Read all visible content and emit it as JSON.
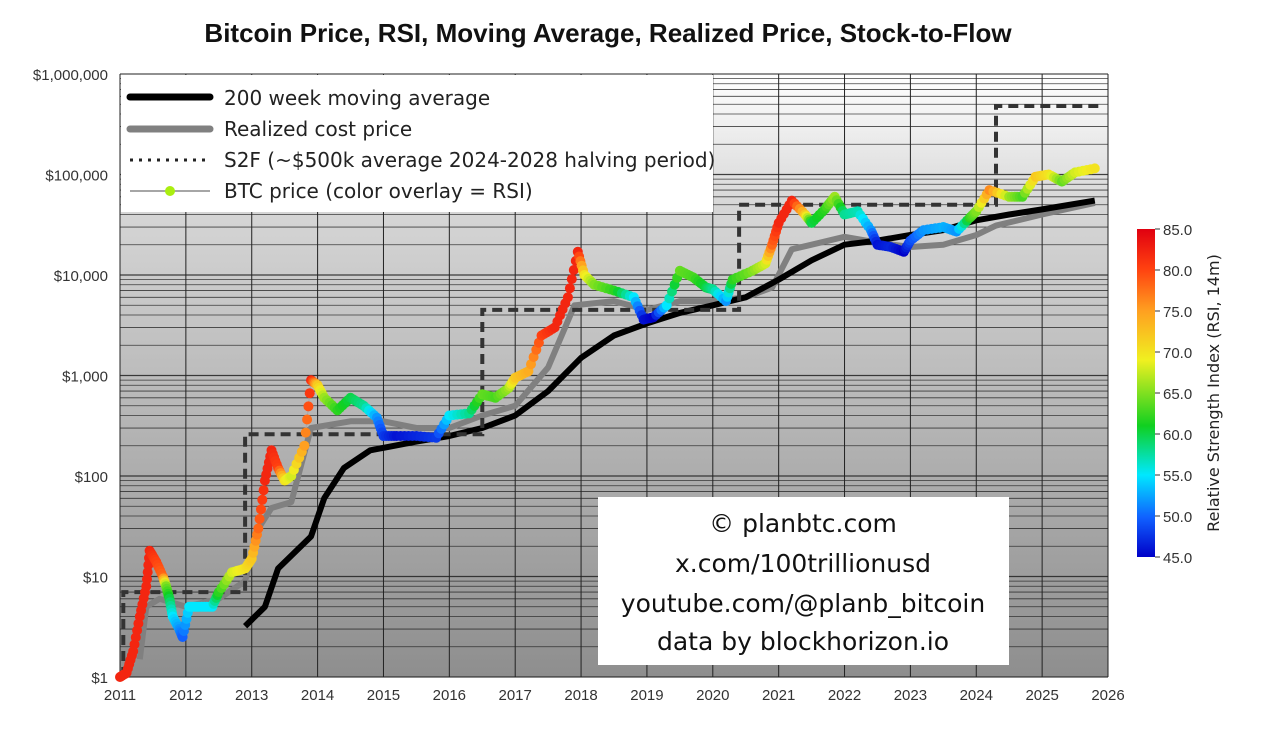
{
  "chart_data": {
    "type": "line",
    "title": "Bitcoin Price, RSI, Moving Average, Realized Price, Stock-to-Flow",
    "x_ticks": [
      "2011",
      "2012",
      "2013",
      "2014",
      "2015",
      "2016",
      "2017",
      "2018",
      "2019",
      "2020",
      "2021",
      "2022",
      "2023",
      "2024",
      "2025",
      "2026"
    ],
    "xlim": [
      2011,
      2026
    ],
    "y_scale": "log",
    "ylim": [
      1,
      1000000
    ],
    "y_ticks": [
      {
        "value": 1,
        "label": "$1"
      },
      {
        "value": 10,
        "label": "$10"
      },
      {
        "value": 100,
        "label": "$100"
      },
      {
        "value": 1000,
        "label": "$1,000"
      },
      {
        "value": 10000,
        "label": "$10,000"
      },
      {
        "value": 100000,
        "label": "$100,000"
      },
      {
        "value": 1000000,
        "label": "$1,000,000"
      }
    ],
    "grid": true,
    "legend_placement": "top-left",
    "legend": [
      "200 week moving average",
      "Realized cost price",
      "S2F (~$500k average 2024-2028 halving period)",
      "BTC price (color overlay = RSI)"
    ],
    "series": [
      {
        "name": "200 week moving average",
        "color": "#000000",
        "points": [
          [
            2012.9,
            3.2
          ],
          [
            2013.2,
            5
          ],
          [
            2013.4,
            12
          ],
          [
            2013.9,
            25
          ],
          [
            2014.1,
            60
          ],
          [
            2014.4,
            120
          ],
          [
            2014.8,
            180
          ],
          [
            2015.5,
            220
          ],
          [
            2016.0,
            250
          ],
          [
            2016.5,
            300
          ],
          [
            2017.0,
            400
          ],
          [
            2017.5,
            700
          ],
          [
            2018.0,
            1500
          ],
          [
            2018.5,
            2500
          ],
          [
            2019.0,
            3300
          ],
          [
            2019.5,
            4200
          ],
          [
            2020.0,
            5000
          ],
          [
            2020.5,
            6000
          ],
          [
            2021.0,
            9000
          ],
          [
            2021.5,
            14000
          ],
          [
            2022.0,
            20000
          ],
          [
            2022.5,
            22000
          ],
          [
            2023.0,
            25000
          ],
          [
            2023.5,
            28000
          ],
          [
            2024.0,
            35000
          ],
          [
            2024.5,
            40000
          ],
          [
            2025.0,
            45000
          ],
          [
            2025.8,
            55000
          ]
        ]
      },
      {
        "name": "Realized cost price",
        "color": "#808080",
        "points": [
          [
            2011.3,
            1.5
          ],
          [
            2011.4,
            5
          ],
          [
            2011.6,
            6
          ],
          [
            2012.0,
            5
          ],
          [
            2012.5,
            6
          ],
          [
            2012.9,
            9
          ],
          [
            2013.1,
            30
          ],
          [
            2013.3,
            48
          ],
          [
            2013.6,
            55
          ],
          [
            2013.9,
            300
          ],
          [
            2014.5,
            350
          ],
          [
            2015.0,
            350
          ],
          [
            2015.5,
            300
          ],
          [
            2016.0,
            300
          ],
          [
            2016.5,
            400
          ],
          [
            2017.0,
            500
          ],
          [
            2017.5,
            1200
          ],
          [
            2017.9,
            5000
          ],
          [
            2018.5,
            5500
          ],
          [
            2019.0,
            4500
          ],
          [
            2019.5,
            5500
          ],
          [
            2020.0,
            5500
          ],
          [
            2020.5,
            6000
          ],
          [
            2020.9,
            7500
          ],
          [
            2021.2,
            18000
          ],
          [
            2021.5,
            20000
          ],
          [
            2022.0,
            24000
          ],
          [
            2022.5,
            21000
          ],
          [
            2023.0,
            19000
          ],
          [
            2023.5,
            20000
          ],
          [
            2024.0,
            25000
          ],
          [
            2024.3,
            31000
          ],
          [
            2025.0,
            40000
          ],
          [
            2025.8,
            52000
          ]
        ]
      },
      {
        "name": "S2F (~$500k average 2024-2028 halving period)",
        "color": "#333333",
        "points": [
          [
            2011.05,
            1
          ],
          [
            2011.05,
            7
          ],
          [
            2012.9,
            7
          ],
          [
            2012.9,
            260
          ],
          [
            2016.5,
            260
          ],
          [
            2016.5,
            4500
          ],
          [
            2020.4,
            4500
          ],
          [
            2020.4,
            50000
          ],
          [
            2024.3,
            50000
          ],
          [
            2024.3,
            480000
          ],
          [
            2025.9,
            480000
          ]
        ]
      },
      {
        "name": "BTC price (color overlay = RSI)",
        "color": "#aaaaaa",
        "points_year_price_rsi": [
          [
            2011.0,
            1,
            82
          ],
          [
            2011.1,
            1.1,
            82
          ],
          [
            2011.2,
            1.8,
            82
          ],
          [
            2011.3,
            4,
            82
          ],
          [
            2011.4,
            8,
            82
          ],
          [
            2011.45,
            18,
            82
          ],
          [
            2011.55,
            14,
            80
          ],
          [
            2011.65,
            10,
            78
          ],
          [
            2011.7,
            8,
            65
          ],
          [
            2011.75,
            6,
            60
          ],
          [
            2011.8,
            4,
            55
          ],
          [
            2011.9,
            3,
            52
          ],
          [
            2011.95,
            2.5,
            50
          ],
          [
            2012.05,
            5,
            55
          ],
          [
            2012.2,
            5,
            55
          ],
          [
            2012.4,
            5,
            55
          ],
          [
            2012.5,
            7,
            62
          ],
          [
            2012.7,
            11,
            68
          ],
          [
            2012.9,
            12,
            70
          ],
          [
            2013.0,
            15,
            72
          ],
          [
            2013.1,
            30,
            78
          ],
          [
            2013.2,
            90,
            82
          ],
          [
            2013.3,
            180,
            82
          ],
          [
            2013.4,
            120,
            80
          ],
          [
            2013.5,
            90,
            70
          ],
          [
            2013.6,
            100,
            68
          ],
          [
            2013.8,
            200,
            75
          ],
          [
            2013.9,
            900,
            82
          ],
          [
            2014.0,
            800,
            72
          ],
          [
            2014.1,
            600,
            66
          ],
          [
            2014.3,
            450,
            62
          ],
          [
            2014.5,
            600,
            60
          ],
          [
            2014.7,
            500,
            58
          ],
          [
            2014.9,
            380,
            52
          ],
          [
            2015.0,
            250,
            48
          ],
          [
            2015.2,
            250,
            46
          ],
          [
            2015.5,
            250,
            47
          ],
          [
            2015.8,
            240,
            48
          ],
          [
            2016.0,
            400,
            55
          ],
          [
            2016.3,
            420,
            58
          ],
          [
            2016.5,
            650,
            64
          ],
          [
            2016.7,
            600,
            63
          ],
          [
            2016.9,
            750,
            66
          ],
          [
            2017.0,
            950,
            72
          ],
          [
            2017.2,
            1100,
            74
          ],
          [
            2017.4,
            2500,
            80
          ],
          [
            2017.6,
            3000,
            82
          ],
          [
            2017.8,
            6000,
            82
          ],
          [
            2017.95,
            17000,
            82
          ],
          [
            2018.05,
            10000,
            70
          ],
          [
            2018.2,
            8000,
            65
          ],
          [
            2018.5,
            7000,
            62
          ],
          [
            2018.8,
            6000,
            55
          ],
          [
            2018.95,
            3600,
            46
          ],
          [
            2019.1,
            3800,
            45
          ],
          [
            2019.3,
            5000,
            55
          ],
          [
            2019.5,
            11000,
            64
          ],
          [
            2019.7,
            9500,
            63
          ],
          [
            2019.9,
            7500,
            60
          ],
          [
            2020.0,
            7200,
            58
          ],
          [
            2020.2,
            5500,
            52
          ],
          [
            2020.3,
            9000,
            62
          ],
          [
            2020.6,
            11000,
            65
          ],
          [
            2020.8,
            13000,
            68
          ],
          [
            2020.9,
            20000,
            78
          ],
          [
            2021.0,
            33000,
            82
          ],
          [
            2021.2,
            55000,
            82
          ],
          [
            2021.4,
            40000,
            72
          ],
          [
            2021.5,
            33000,
            60
          ],
          [
            2021.7,
            45000,
            62
          ],
          [
            2021.85,
            60000,
            66
          ],
          [
            2022.0,
            40000,
            58
          ],
          [
            2022.2,
            43000,
            57
          ],
          [
            2022.4,
            28000,
            52
          ],
          [
            2022.5,
            20000,
            46
          ],
          [
            2022.7,
            19000,
            47
          ],
          [
            2022.9,
            17000,
            45
          ],
          [
            2023.0,
            22000,
            49
          ],
          [
            2023.2,
            28000,
            52
          ],
          [
            2023.5,
            30000,
            53
          ],
          [
            2023.7,
            27000,
            52
          ],
          [
            2023.9,
            37000,
            62
          ],
          [
            2024.0,
            43000,
            65
          ],
          [
            2024.2,
            70000,
            76
          ],
          [
            2024.5,
            60000,
            66
          ],
          [
            2024.7,
            60000,
            63
          ],
          [
            2024.9,
            95000,
            72
          ],
          [
            2025.1,
            100000,
            70
          ],
          [
            2025.3,
            85000,
            64
          ],
          [
            2025.5,
            105000,
            68
          ],
          [
            2025.8,
            115000,
            70
          ]
        ]
      }
    ],
    "colorbar": {
      "label": "Relative Strength Index (RSI, 14m)",
      "range": [
        45,
        85
      ],
      "ticks": [
        "85.0",
        "80.0",
        "75.0",
        "70.0",
        "65.0",
        "60.0",
        "55.0",
        "50.0",
        "45.0"
      ],
      "colormap": "jet"
    },
    "annotation": [
      "© planbtc.com",
      "x.com/100trillionusd",
      "youtube.com/@planb_bitcoin",
      "data by blockhorizon.io"
    ]
  }
}
